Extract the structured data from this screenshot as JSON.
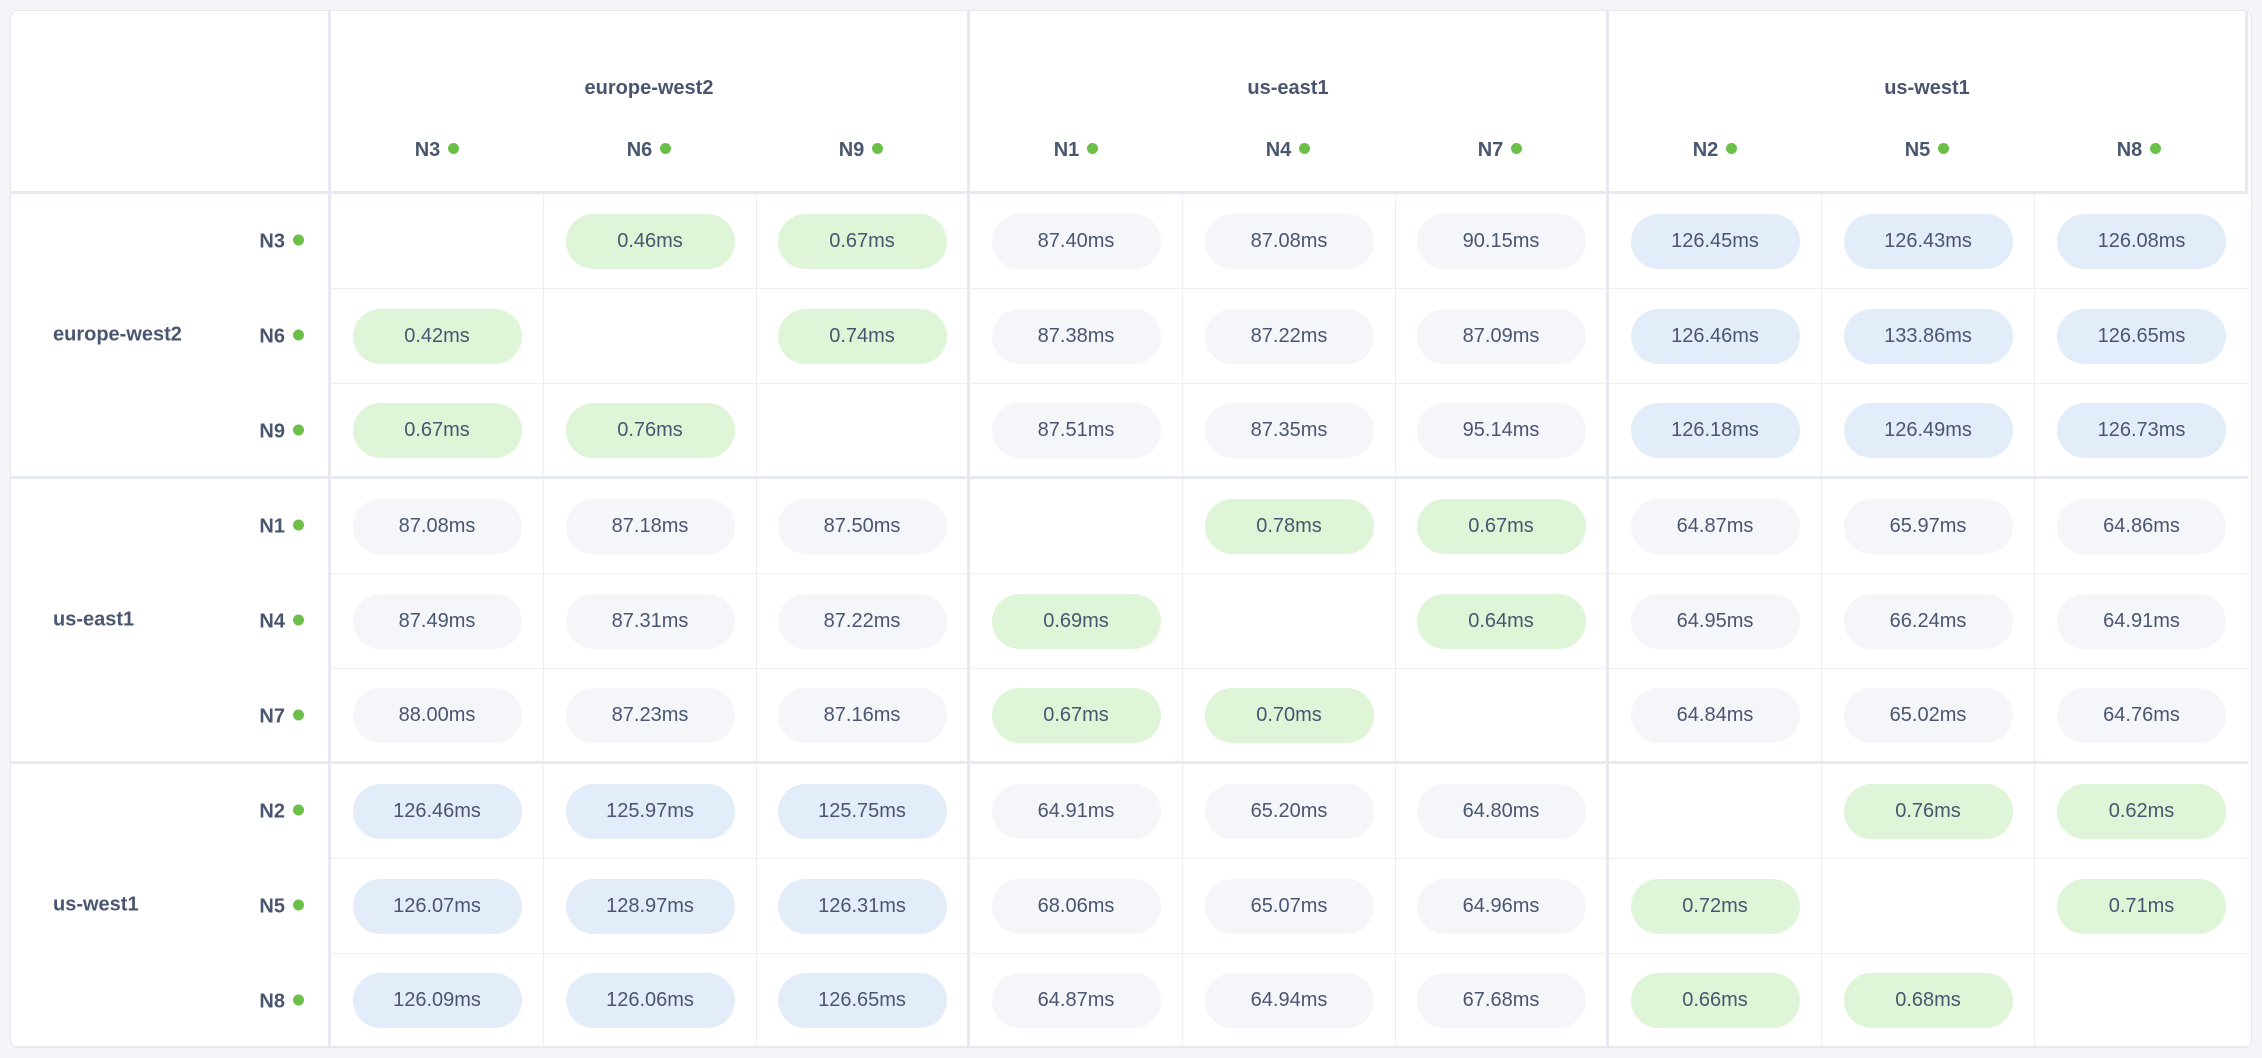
{
  "groups": [
    {
      "region": "europe-west2",
      "nodes": [
        "N3",
        "N6",
        "N9"
      ]
    },
    {
      "region": "us-east1",
      "nodes": [
        "N1",
        "N4",
        "N7"
      ]
    },
    {
      "region": "us-west1",
      "nodes": [
        "N2",
        "N5",
        "N8"
      ]
    }
  ],
  "node_status": "online",
  "colors": {
    "status_dot": "#6cc04a",
    "same_region_pill": "#dff5d7",
    "mid_latency_pill": "#f4f6fa",
    "high_latency_pill": "#e3edf9",
    "text": "#4a5670"
  },
  "latency_matrix": [
    [
      null,
      "0.46ms",
      "0.67ms",
      "87.40ms",
      "87.08ms",
      "90.15ms",
      "126.45ms",
      "126.43ms",
      "126.08ms"
    ],
    [
      "0.42ms",
      null,
      "0.74ms",
      "87.38ms",
      "87.22ms",
      "87.09ms",
      "126.46ms",
      "133.86ms",
      "126.65ms"
    ],
    [
      "0.67ms",
      "0.76ms",
      null,
      "87.51ms",
      "87.35ms",
      "95.14ms",
      "126.18ms",
      "126.49ms",
      "126.73ms"
    ],
    [
      "87.08ms",
      "87.18ms",
      "87.50ms",
      null,
      "0.78ms",
      "0.67ms",
      "64.87ms",
      "65.97ms",
      "64.86ms"
    ],
    [
      "87.49ms",
      "87.31ms",
      "87.22ms",
      "0.69ms",
      null,
      "0.64ms",
      "64.95ms",
      "66.24ms",
      "64.91ms"
    ],
    [
      "88.00ms",
      "87.23ms",
      "87.16ms",
      "0.67ms",
      "0.70ms",
      null,
      "64.84ms",
      "65.02ms",
      "64.76ms"
    ],
    [
      "126.46ms",
      "125.97ms",
      "125.75ms",
      "64.91ms",
      "65.20ms",
      "64.80ms",
      null,
      "0.76ms",
      "0.62ms"
    ],
    [
      "126.07ms",
      "128.97ms",
      "126.31ms",
      "68.06ms",
      "65.07ms",
      "64.96ms",
      "0.72ms",
      null,
      "0.71ms"
    ],
    [
      "126.09ms",
      "126.06ms",
      "126.65ms",
      "64.87ms",
      "64.94ms",
      "67.68ms",
      "0.66ms",
      "0.68ms",
      null
    ]
  ]
}
